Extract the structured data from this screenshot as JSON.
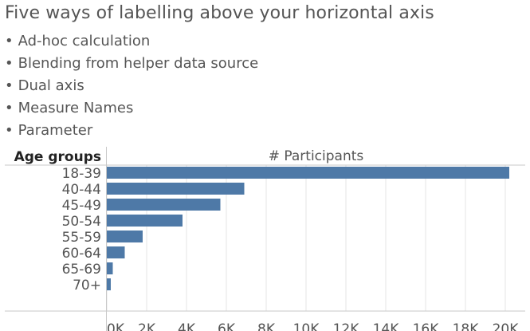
{
  "title": "Five ways of labelling above your horizontal axis",
  "bullets": [
    "Ad-hoc calculation",
    "Blending from helper data source",
    "Dual axis",
    "Measure Names",
    "Parameter"
  ],
  "colors": {
    "bar": "#4e79a7",
    "grid": "#e6e6e6",
    "axis": "#c8c8c8",
    "text": "#555555",
    "row_header": "#222222"
  },
  "chart_data": {
    "type": "bar",
    "orientation": "horizontal",
    "row_header": "Age groups",
    "column_header": "# Participants",
    "categories": [
      "18-39",
      "40-44",
      "45-49",
      "50-54",
      "55-59",
      "60-64",
      "65-69",
      "70+"
    ],
    "values": [
      20200,
      6900,
      5700,
      3800,
      1800,
      900,
      300,
      200
    ],
    "xlim": [
      0,
      21000
    ],
    "ticks": [
      0,
      2000,
      4000,
      6000,
      8000,
      10000,
      12000,
      14000,
      16000,
      18000,
      20000
    ],
    "tick_labels": [
      "0K",
      "2K",
      "4K",
      "6K",
      "8K",
      "10K",
      "12K",
      "14K",
      "16K",
      "18K",
      "20K"
    ],
    "grid": true
  }
}
